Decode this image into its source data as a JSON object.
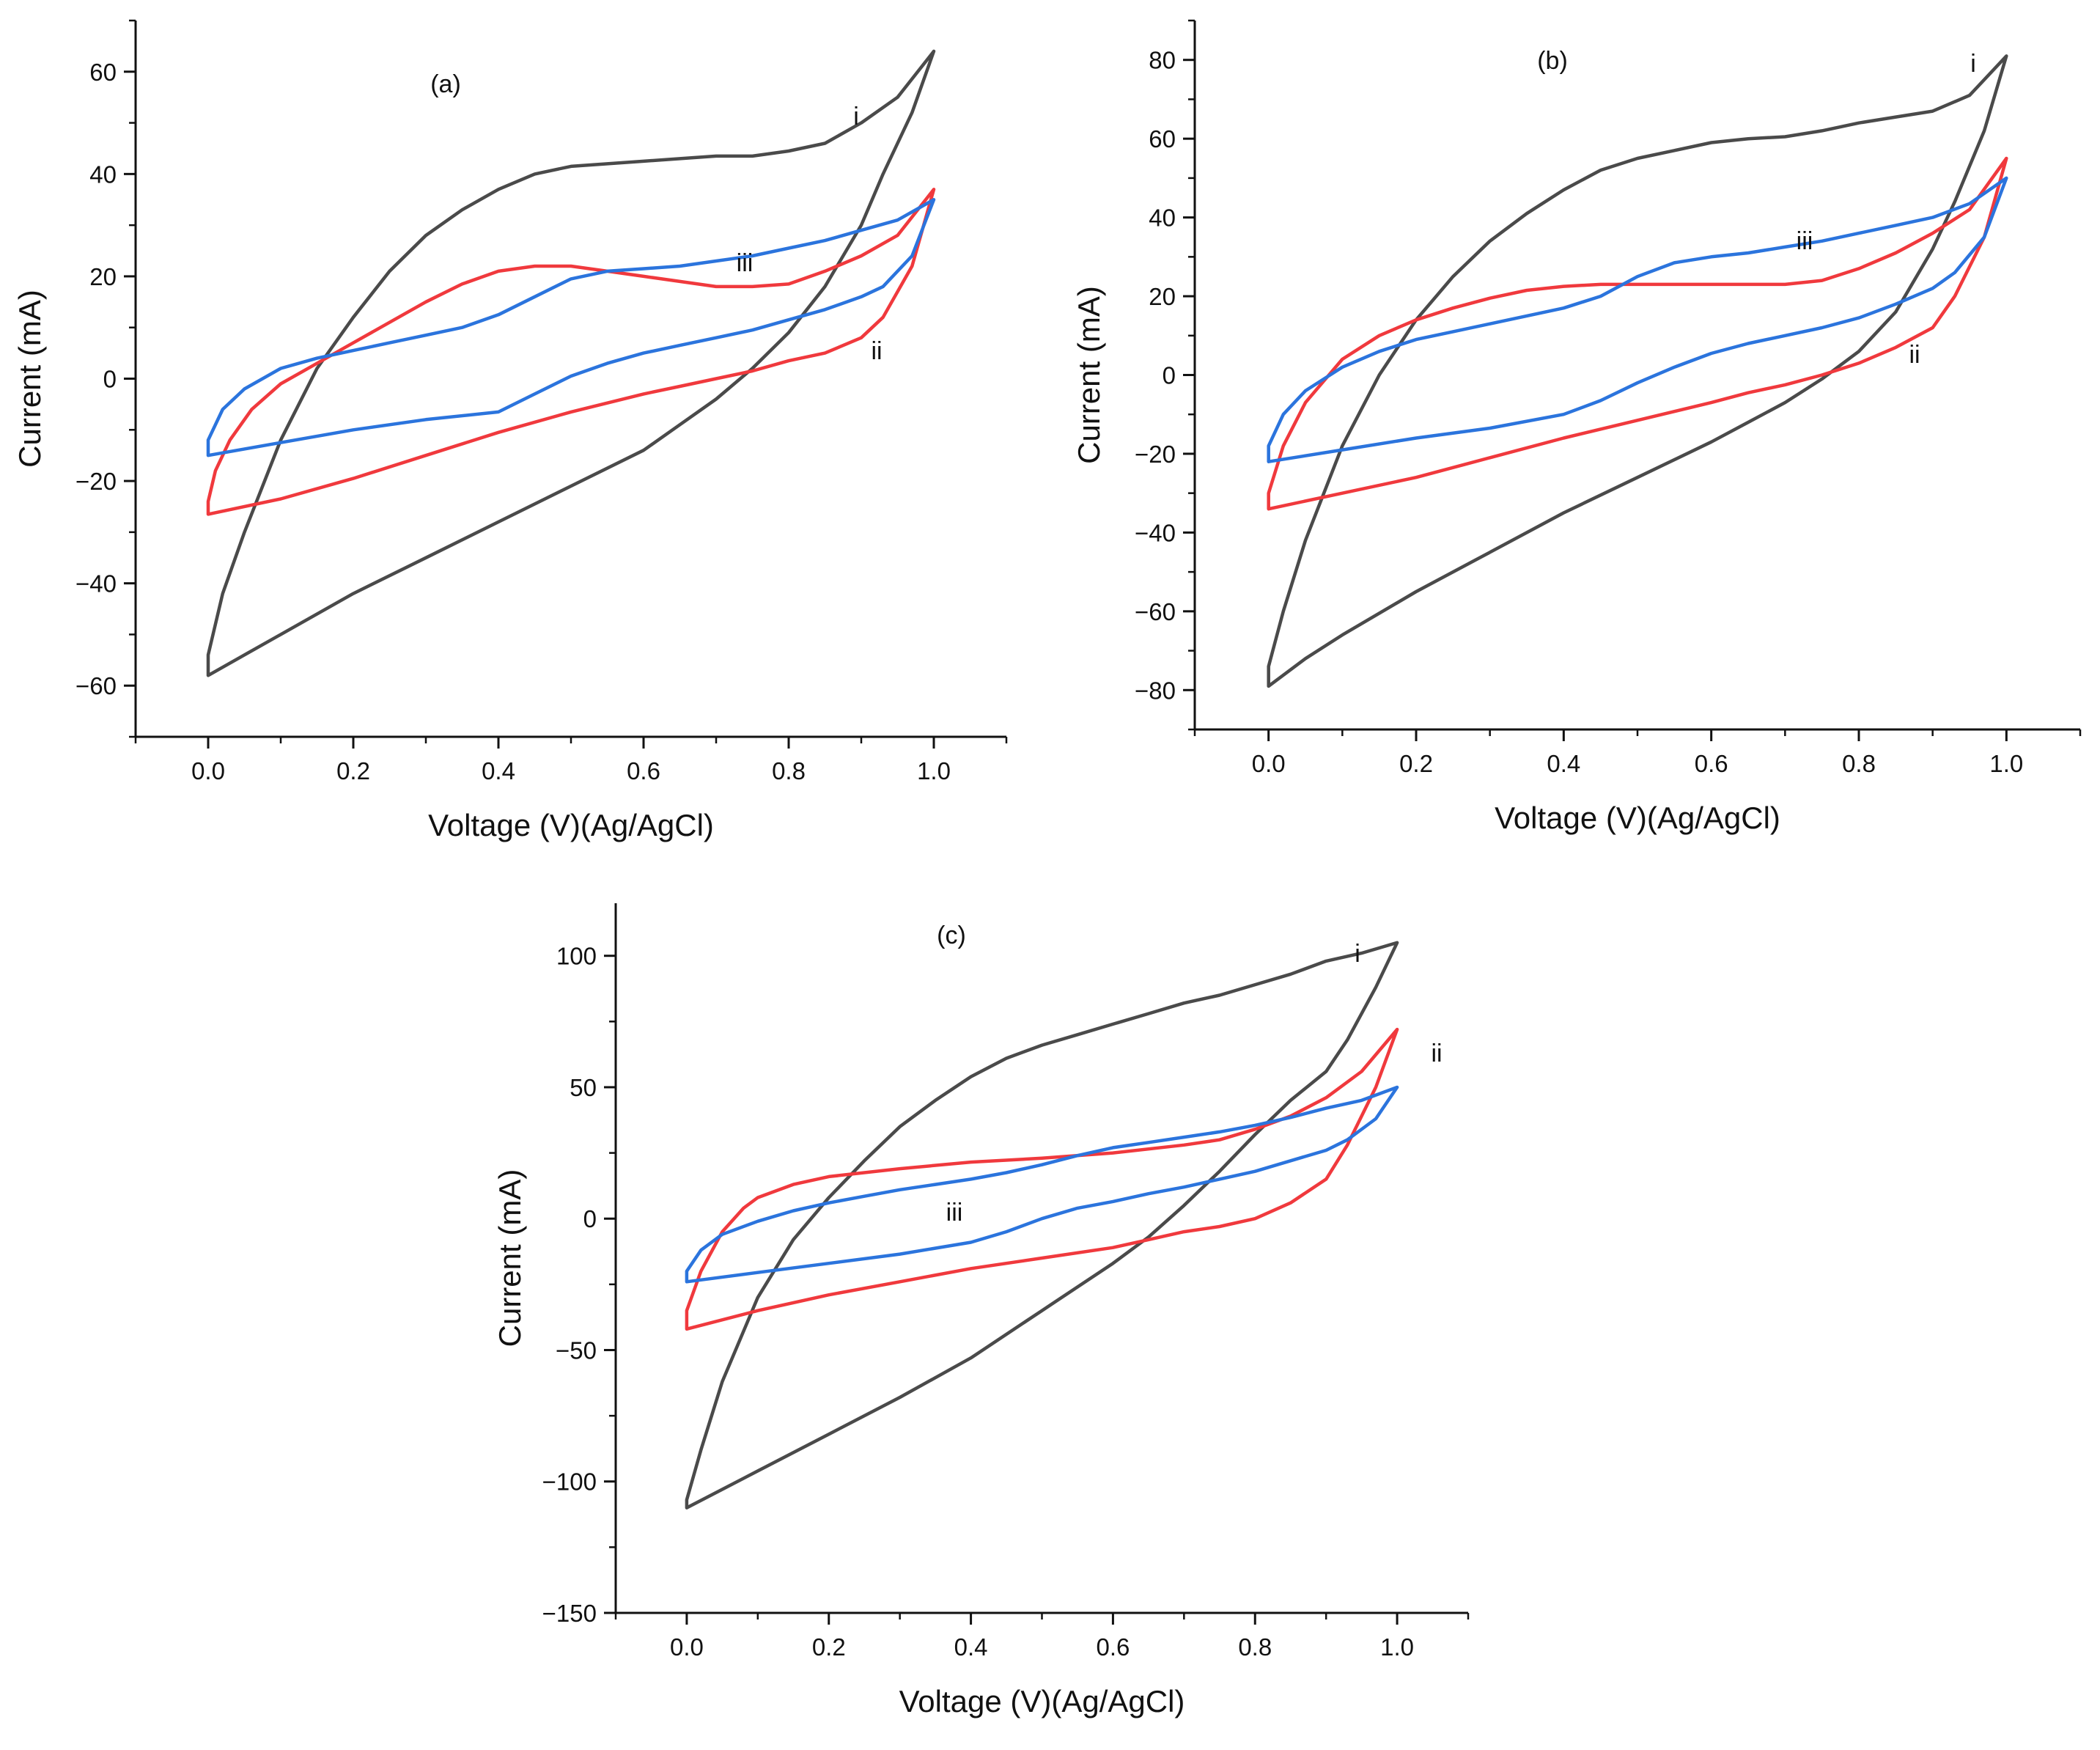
{
  "colors": {
    "i": "#4a4a4a",
    "ii": "#f0393d",
    "iii": "#2b74dd",
    "axis": "#111111"
  },
  "chart_data": [
    {
      "type": "line",
      "title": "(a)",
      "xlabel": "Voltage (V)(Ag/AgCl)",
      "ylabel": "Current (mA)",
      "xlim": [
        -0.1,
        1.1
      ],
      "ylim": [
        -70,
        70
      ],
      "xticks": [
        0.0,
        0.2,
        0.4,
        0.6,
        0.8,
        1.0
      ],
      "xtick_labels": [
        "0.0",
        "0.2",
        "0.4",
        "0.6",
        "0.8",
        "1.0"
      ],
      "yticks": [
        -60,
        -40,
        -20,
        0,
        20,
        40,
        60
      ],
      "ytick_labels": [
        "−60",
        "−40",
        "−20",
        "0",
        "20",
        "40",
        "60"
      ],
      "grid": false,
      "series": [
        {
          "name": "i",
          "color_key": "i",
          "x": [
            0.0,
            0.02,
            0.05,
            0.1,
            0.15,
            0.2,
            0.25,
            0.3,
            0.35,
            0.4,
            0.45,
            0.5,
            0.55,
            0.6,
            0.65,
            0.7,
            0.75,
            0.8,
            0.85,
            0.9,
            0.95,
            1.0,
            0.97,
            0.93,
            0.9,
            0.85,
            0.8,
            0.75,
            0.7,
            0.65,
            0.6,
            0.5,
            0.4,
            0.3,
            0.2,
            0.1,
            0.05,
            0.0,
            0.0
          ],
          "y": [
            -54,
            -42,
            -30,
            -12,
            2,
            12,
            21,
            28,
            33,
            37,
            40,
            41.5,
            42,
            42.5,
            43,
            43.5,
            43.5,
            44.5,
            46,
            50,
            55,
            64,
            52,
            40,
            30,
            18,
            9,
            2,
            -4,
            -9,
            -14,
            -21,
            -28,
            -35,
            -42,
            -50,
            -54,
            -58,
            -54
          ],
          "label": "i"
        },
        {
          "name": "ii",
          "color_key": "ii",
          "x": [
            0.0,
            0.01,
            0.03,
            0.06,
            0.1,
            0.15,
            0.2,
            0.25,
            0.3,
            0.35,
            0.4,
            0.45,
            0.5,
            0.55,
            0.6,
            0.65,
            0.7,
            0.75,
            0.8,
            0.85,
            0.9,
            0.95,
            1.0,
            0.97,
            0.93,
            0.9,
            0.85,
            0.8,
            0.75,
            0.7,
            0.65,
            0.6,
            0.5,
            0.4,
            0.3,
            0.2,
            0.1,
            0.0,
            0.0
          ],
          "y": [
            -24,
            -18,
            -12,
            -6,
            -1,
            3,
            7,
            11,
            15,
            18.5,
            21,
            22,
            22,
            21,
            20,
            19,
            18,
            18,
            18.5,
            21,
            24,
            28,
            37,
            22,
            12,
            8,
            5,
            3.5,
            1.5,
            0,
            -1.5,
            -3,
            -6.5,
            -10.5,
            -15,
            -19.5,
            -23.5,
            -26.5,
            -24
          ],
          "label": "ii"
        },
        {
          "name": "iii",
          "color_key": "iii",
          "x": [
            0.0,
            0.02,
            0.05,
            0.1,
            0.15,
            0.2,
            0.25,
            0.3,
            0.35,
            0.4,
            0.45,
            0.5,
            0.55,
            0.6,
            0.65,
            0.7,
            0.75,
            0.8,
            0.85,
            0.9,
            0.95,
            1.0,
            0.97,
            0.93,
            0.9,
            0.85,
            0.8,
            0.75,
            0.7,
            0.65,
            0.6,
            0.55,
            0.5,
            0.45,
            0.4,
            0.3,
            0.2,
            0.1,
            0.0,
            0.0
          ],
          "y": [
            -12,
            -6,
            -2,
            2,
            4,
            5.5,
            7,
            8.5,
            10,
            12.5,
            16,
            19.5,
            21,
            21.5,
            22,
            23,
            24,
            25.5,
            27,
            29,
            31,
            35,
            24,
            18,
            16,
            13.5,
            11.5,
            9.5,
            8,
            6.5,
            5,
            3,
            0.5,
            -3,
            -6.5,
            -8,
            -10,
            -12.5,
            -15,
            -12
          ],
          "label": "iii"
        }
      ],
      "annotations": [
        "i",
        "ii",
        "iii"
      ]
    },
    {
      "type": "line",
      "title": "(b)",
      "xlabel": "Voltage (V)(Ag/AgCl)",
      "ylabel": "Current (mA)",
      "xlim": [
        -0.1,
        1.1
      ],
      "ylim": [
        -90,
        90
      ],
      "xticks": [
        0.0,
        0.2,
        0.4,
        0.6,
        0.8,
        1.0
      ],
      "xtick_labels": [
        "0.0",
        "0.2",
        "0.4",
        "0.6",
        "0.8",
        "1.0"
      ],
      "yticks": [
        -80,
        -60,
        -40,
        -20,
        0,
        20,
        40,
        60,
        80
      ],
      "ytick_labels": [
        "−80",
        "−60",
        "−40",
        "−20",
        "0",
        "20",
        "40",
        "60",
        "80"
      ],
      "grid": false,
      "series": [
        {
          "name": "i",
          "color_key": "i",
          "x": [
            0.0,
            0.02,
            0.05,
            0.1,
            0.15,
            0.2,
            0.25,
            0.3,
            0.35,
            0.4,
            0.45,
            0.5,
            0.55,
            0.6,
            0.65,
            0.7,
            0.75,
            0.8,
            0.85,
            0.9,
            0.95,
            1.0,
            0.97,
            0.93,
            0.9,
            0.85,
            0.8,
            0.75,
            0.7,
            0.65,
            0.6,
            0.5,
            0.4,
            0.3,
            0.2,
            0.1,
            0.05,
            0.0,
            0.0
          ],
          "y": [
            -74,
            -60,
            -42,
            -18,
            0,
            14,
            25,
            34,
            41,
            47,
            52,
            55,
            57,
            59,
            60,
            60.5,
            62,
            64,
            65.5,
            67,
            71,
            81,
            62,
            44,
            32,
            16,
            6,
            -1,
            -7,
            -12,
            -17,
            -26,
            -35,
            -45,
            -55,
            -66,
            -72,
            -79,
            -74
          ],
          "label": "i"
        },
        {
          "name": "ii",
          "color_key": "ii",
          "x": [
            0.0,
            0.02,
            0.05,
            0.1,
            0.15,
            0.2,
            0.25,
            0.3,
            0.35,
            0.4,
            0.45,
            0.5,
            0.6,
            0.7,
            0.75,
            0.8,
            0.85,
            0.9,
            0.95,
            1.0,
            0.97,
            0.93,
            0.9,
            0.85,
            0.8,
            0.75,
            0.7,
            0.65,
            0.6,
            0.5,
            0.4,
            0.3,
            0.2,
            0.1,
            0.0,
            0.0
          ],
          "y": [
            -30,
            -18,
            -7,
            4,
            10,
            14,
            17,
            19.5,
            21.5,
            22.5,
            23,
            23,
            23,
            23,
            24,
            27,
            31,
            36,
            42,
            55,
            35,
            20,
            12,
            7,
            3,
            0,
            -2.5,
            -4.5,
            -7,
            -11.5,
            -16,
            -21,
            -26,
            -30,
            -34,
            -30
          ],
          "label": "ii"
        },
        {
          "name": "iii",
          "color_key": "iii",
          "x": [
            0.0,
            0.02,
            0.05,
            0.1,
            0.15,
            0.2,
            0.25,
            0.3,
            0.35,
            0.4,
            0.45,
            0.5,
            0.55,
            0.6,
            0.65,
            0.7,
            0.75,
            0.8,
            0.85,
            0.9,
            0.95,
            1.0,
            0.97,
            0.93,
            0.9,
            0.85,
            0.8,
            0.75,
            0.7,
            0.65,
            0.6,
            0.55,
            0.5,
            0.45,
            0.4,
            0.3,
            0.2,
            0.1,
            0.0,
            0.0
          ],
          "y": [
            -18,
            -10,
            -4,
            2,
            6,
            9,
            11,
            13,
            15,
            17,
            20,
            25,
            28.5,
            30,
            31,
            32.5,
            34,
            36,
            38,
            40,
            43.5,
            50,
            35,
            26,
            22,
            18,
            14.5,
            12,
            10,
            8,
            5.5,
            2,
            -2,
            -6.5,
            -10,
            -13.5,
            -16,
            -19,
            -22,
            -18
          ],
          "label": "iii"
        }
      ],
      "annotations": [
        "i",
        "ii",
        "iii"
      ]
    },
    {
      "type": "line",
      "title": "(c)",
      "xlabel": "Voltage (V)(Ag/AgCl)",
      "ylabel": "Current (mA)",
      "xlim": [
        -0.1,
        1.1
      ],
      "ylim": [
        -150,
        120
      ],
      "xticks": [
        0.0,
        0.2,
        0.4,
        0.6,
        0.8,
        1.0
      ],
      "xtick_labels": [
        "0.0",
        "0.2",
        "0.4",
        "0.6",
        "0.8",
        "1.0"
      ],
      "yticks": [
        -150,
        -100,
        -50,
        0,
        50,
        100
      ],
      "ytick_labels": [
        "−150",
        "−100",
        "−50",
        "0",
        "50",
        "100"
      ],
      "grid": false,
      "series": [
        {
          "name": "i",
          "color_key": "i",
          "x": [
            0.0,
            0.02,
            0.05,
            0.1,
            0.15,
            0.2,
            0.25,
            0.3,
            0.35,
            0.4,
            0.45,
            0.5,
            0.55,
            0.6,
            0.65,
            0.7,
            0.75,
            0.8,
            0.85,
            0.9,
            0.95,
            1.0,
            0.97,
            0.93,
            0.9,
            0.85,
            0.8,
            0.75,
            0.7,
            0.65,
            0.6,
            0.5,
            0.4,
            0.3,
            0.2,
            0.1,
            0.05,
            0.0,
            0.0
          ],
          "y": [
            -107,
            -88,
            -62,
            -30,
            -8,
            8,
            22,
            35,
            45,
            54,
            61,
            66,
            70,
            74,
            78,
            82,
            85,
            89,
            93,
            98,
            101,
            105,
            88,
            68,
            56,
            45,
            32,
            18,
            5,
            -7,
            -17,
            -35,
            -53,
            -68,
            -82,
            -96,
            -103,
            -110,
            -107
          ],
          "label": "i"
        },
        {
          "name": "ii",
          "color_key": "ii",
          "x": [
            0.0,
            0.02,
            0.05,
            0.08,
            0.1,
            0.15,
            0.2,
            0.3,
            0.4,
            0.5,
            0.6,
            0.7,
            0.75,
            0.8,
            0.85,
            0.9,
            0.95,
            1.0,
            0.97,
            0.93,
            0.9,
            0.85,
            0.8,
            0.75,
            0.7,
            0.65,
            0.6,
            0.5,
            0.4,
            0.3,
            0.2,
            0.1,
            0.0,
            0.0
          ],
          "y": [
            -35,
            -20,
            -5,
            4,
            8,
            13,
            16,
            19,
            21.5,
            23,
            25,
            28,
            30,
            34,
            39,
            46,
            56,
            72,
            50,
            28,
            15,
            6,
            0,
            -3,
            -5,
            -8,
            -11,
            -15,
            -19,
            -24,
            -29,
            -35,
            -42,
            -35
          ],
          "label": "ii"
        },
        {
          "name": "iii",
          "color_key": "iii",
          "x": [
            0.0,
            0.02,
            0.05,
            0.1,
            0.15,
            0.2,
            0.25,
            0.3,
            0.35,
            0.4,
            0.45,
            0.5,
            0.55,
            0.6,
            0.65,
            0.7,
            0.75,
            0.8,
            0.85,
            0.9,
            0.95,
            1.0,
            0.97,
            0.93,
            0.9,
            0.85,
            0.8,
            0.75,
            0.7,
            0.65,
            0.6,
            0.55,
            0.5,
            0.45,
            0.4,
            0.3,
            0.2,
            0.1,
            0.0,
            0.0
          ],
          "y": [
            -20,
            -12,
            -6,
            -1,
            3,
            6,
            8.5,
            11,
            13,
            15,
            17.5,
            20.5,
            24,
            27,
            29,
            31,
            33,
            35.5,
            38.5,
            42,
            45,
            50,
            38,
            30,
            26,
            22,
            18,
            15,
            12,
            9.5,
            6.5,
            4,
            0,
            -5,
            -9,
            -13.5,
            -17,
            -20.5,
            -24,
            -20
          ],
          "label": "iii"
        }
      ],
      "annotations": [
        "i",
        "ii",
        "iii"
      ]
    }
  ]
}
